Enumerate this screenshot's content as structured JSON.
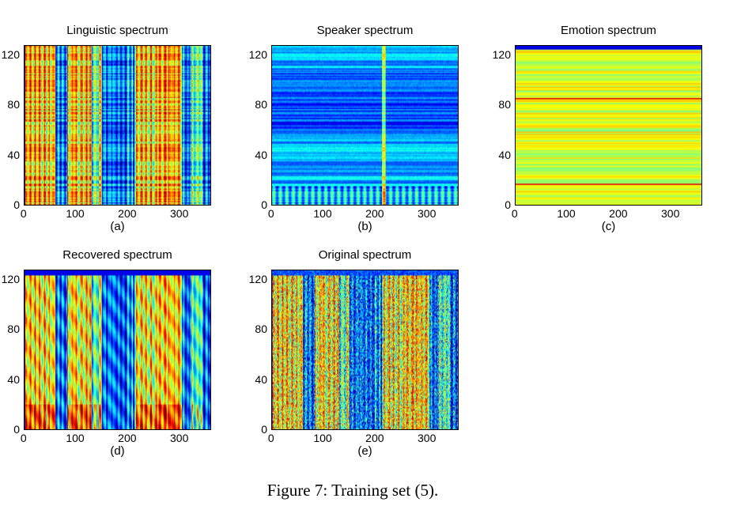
{
  "chart_data": [
    {
      "type": "heatmap",
      "title": "Linguistic spectrum",
      "label": "(a)",
      "pattern": "linguistic",
      "xlim": [
        0,
        360
      ],
      "ylim": [
        0,
        128
      ],
      "xticks": [
        "0",
        "100",
        "200",
        "300"
      ],
      "yticks": [
        "0",
        "40",
        "80",
        "120"
      ]
    },
    {
      "type": "heatmap",
      "title": "Speaker spectrum",
      "label": "(b)",
      "pattern": "speaker",
      "xlim": [
        0,
        360
      ],
      "ylim": [
        0,
        128
      ],
      "xticks": [
        "0",
        "100",
        "200",
        "300"
      ],
      "yticks": [
        "0",
        "40",
        "80",
        "120"
      ]
    },
    {
      "type": "heatmap",
      "title": "Emotion spectrum",
      "label": "(c)",
      "pattern": "emotion",
      "xlim": [
        0,
        360
      ],
      "ylim": [
        0,
        128
      ],
      "xticks": [
        "0",
        "100",
        "200",
        "300"
      ],
      "yticks": [
        "0",
        "40",
        "80",
        "120"
      ]
    },
    {
      "type": "heatmap",
      "title": "Recovered spectrum",
      "label": "(d)",
      "pattern": "recovered",
      "xlim": [
        0,
        360
      ],
      "ylim": [
        0,
        128
      ],
      "xticks": [
        "0",
        "100",
        "200",
        "300"
      ],
      "yticks": [
        "0",
        "40",
        "80",
        "120"
      ]
    },
    {
      "type": "heatmap",
      "title": "Original spectrum",
      "label": "(e)",
      "pattern": "original",
      "xlim": [
        0,
        360
      ],
      "ylim": [
        0,
        128
      ],
      "xticks": [
        "0",
        "100",
        "200",
        "300"
      ],
      "yticks": [
        "0",
        "40",
        "80",
        "120"
      ]
    }
  ],
  "caption": "Figure 7: Training set (5)."
}
